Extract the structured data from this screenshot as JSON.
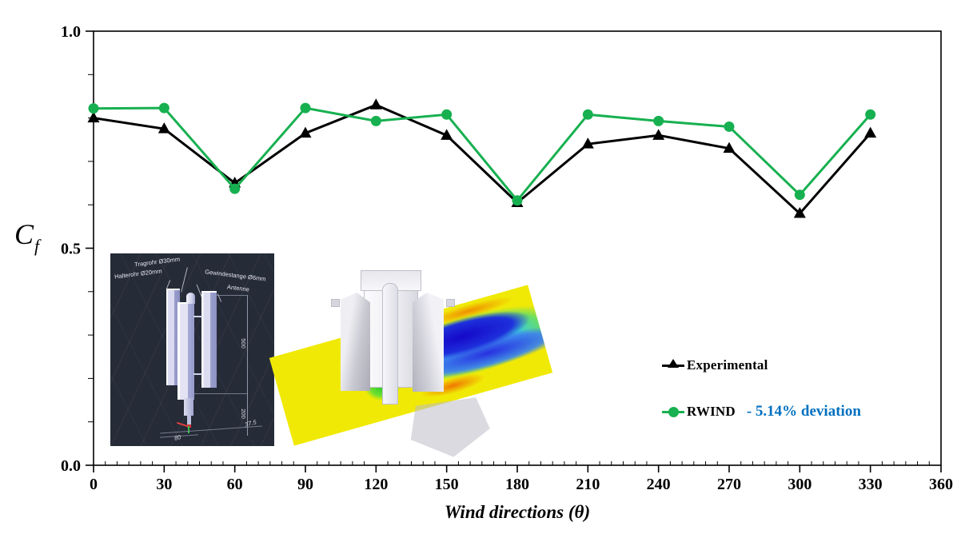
{
  "figure": {
    "ylabel_base": "C",
    "ylabel_sub": "f"
  },
  "chart_data": {
    "type": "line",
    "title": "",
    "xlabel": "Wind directions (θ)",
    "ylabel": "Cf",
    "xlim": [
      0,
      360
    ],
    "ylim": [
      0.0,
      1.0
    ],
    "grid": false,
    "legend_position": "right-center",
    "x": [
      0,
      30,
      60,
      90,
      120,
      150,
      180,
      210,
      240,
      270,
      300,
      330
    ],
    "series": [
      {
        "name": "Experimental",
        "marker": "triangle",
        "color": "#000000",
        "values": [
          0.8,
          0.775,
          0.65,
          0.765,
          0.83,
          0.76,
          0.605,
          0.74,
          0.76,
          0.73,
          0.58,
          0.765
        ]
      },
      {
        "name": "RWIND",
        "marker": "circle",
        "color": "#17B050",
        "values": [
          0.822,
          0.823,
          0.637,
          0.823,
          0.793,
          0.808,
          0.61,
          0.808,
          0.793,
          0.78,
          0.623,
          0.808
        ]
      }
    ],
    "x_major_ticks": [
      0,
      30,
      60,
      90,
      120,
      150,
      180,
      210,
      240,
      270,
      300,
      330,
      360
    ],
    "x_tick_labels": [
      "0",
      "30",
      "60",
      "90",
      "120",
      "150",
      "180",
      "210",
      "240",
      "270",
      "300",
      "330",
      "360"
    ],
    "x_minor_step": 5,
    "y_tick_step": 0.1,
    "y_labeled_ticks": [
      1.0,
      0.5,
      0.0
    ],
    "y_tick_labels": [
      "1.0",
      "0.5",
      "0.0"
    ]
  },
  "legend": {
    "experimental_label": "Experimental",
    "rwind_label": "RWIND",
    "deviation_note": "- 5.14% deviation",
    "deviation_color": "#0070C0",
    "rwind_color": "#17B050",
    "experimental_color": "#000000"
  },
  "insets": {
    "cad": {
      "label_tragrohr": "Tragrohr Ø30mm",
      "label_halterohr": "Halterohr Ø20mm",
      "label_gewindestange": "Gewindestange Ø6mm",
      "label_antenne": "Antenne",
      "dim_500": "500",
      "dim_200": "200",
      "dim_375": "37.5",
      "dim_80": "80"
    }
  }
}
